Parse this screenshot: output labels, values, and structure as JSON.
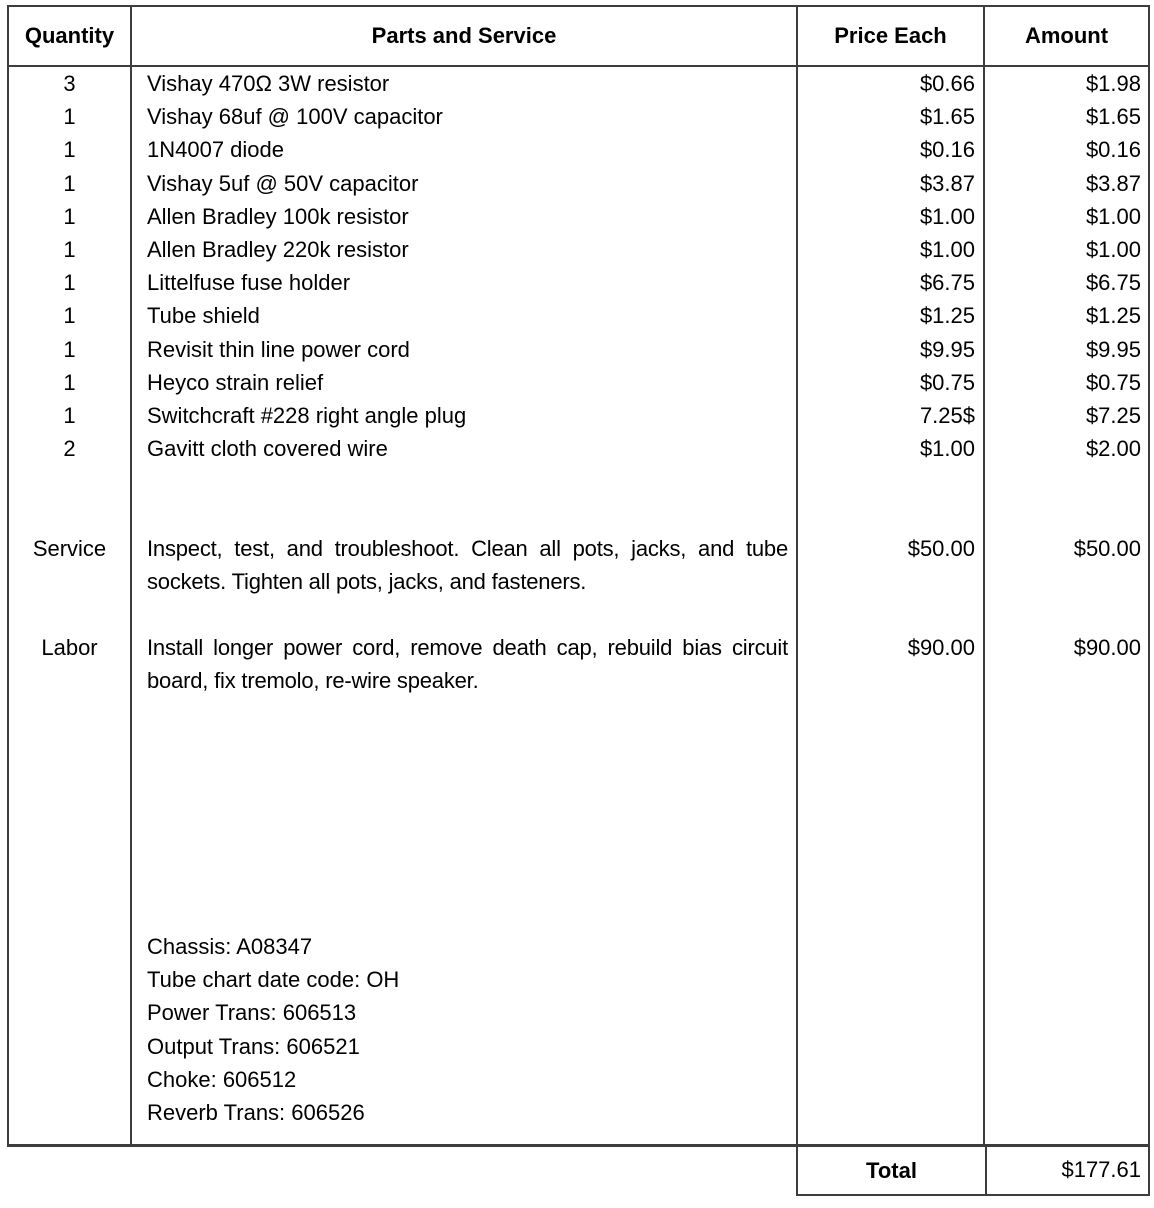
{
  "document": {
    "header": {
      "quantity": "Quantity",
      "parts": "Parts and Service",
      "price": "Price Each",
      "amount": "Amount"
    },
    "items": [
      {
        "qty": "3",
        "desc": "Vishay 470Ω 3W resistor",
        "price": "$0.66",
        "amount": "$1.98"
      },
      {
        "qty": "1",
        "desc": "Vishay 68uf @ 100V capacitor",
        "price": "$1.65",
        "amount": "$1.65"
      },
      {
        "qty": "1",
        "desc": "1N4007 diode",
        "price": "$0.16",
        "amount": "$0.16"
      },
      {
        "qty": "1",
        "desc": "Vishay 5uf @ 50V capacitor",
        "price": "$3.87",
        "amount": "$3.87"
      },
      {
        "qty": "1",
        "desc": "Allen Bradley 100k resistor",
        "price": "$1.00",
        "amount": "$1.00"
      },
      {
        "qty": "1",
        "desc": "Allen Bradley 220k resistor",
        "price": "$1.00",
        "amount": "$1.00"
      },
      {
        "qty": "1",
        "desc": "Littelfuse fuse holder",
        "price": "$6.75",
        "amount": "$6.75"
      },
      {
        "qty": "1",
        "desc": "Tube shield",
        "price": "$1.25",
        "amount": "$1.25"
      },
      {
        "qty": "1",
        "desc": "Revisit thin line power cord",
        "price": "$9.95",
        "amount": "$9.95"
      },
      {
        "qty": "1",
        "desc": "Heyco strain relief",
        "price": "$0.75",
        "amount": "$0.75"
      },
      {
        "qty": "1",
        "desc": "Switchcraft #228 right angle plug",
        "price": "7.25$",
        "amount": "$7.25"
      },
      {
        "qty": "2",
        "desc": "Gavitt cloth covered wire",
        "price": "$1.00",
        "amount": "$2.00"
      }
    ],
    "service_rows": [
      {
        "label": "Service",
        "text": "Inspect, test, and troubleshoot. Clean all pots, jacks, and tube sockets. Tighten all pots, jacks, and fasteners.",
        "price": "$50.00",
        "amount": "$50.00"
      },
      {
        "label": "Labor",
        "text": "Install longer power cord, remove death cap, rebuild bias circuit board, fix tremolo, re-wire speaker.",
        "price": "$90.00",
        "amount": "$90.00"
      }
    ],
    "notes": [
      "Chassis: A08347",
      "Tube chart date code: OH",
      "Power Trans: 606513",
      "Output Trans: 606521",
      "Choke: 606512",
      "Reverb Trans: 606526"
    ],
    "total": {
      "label": "Total",
      "value": "$177.61"
    }
  }
}
